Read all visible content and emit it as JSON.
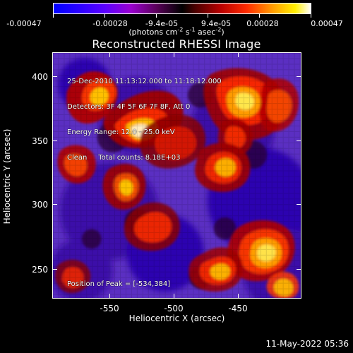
{
  "colorbar": {
    "tick_labels": [
      "-0.00047",
      "-0.00028",
      "-9.4e-05",
      "9.4e-05",
      "0.00028",
      "0.00047"
    ],
    "units_label": "(photons cm",
    "units_sup1": "-2",
    "units_mid1": " s",
    "units_sup2": "-1",
    "units_mid2": " asec",
    "units_sup3": "-2",
    "units_end": ")",
    "colors": {
      "min": "#0000ff",
      "mid": "#000000",
      "max": "#ffffff"
    }
  },
  "plot": {
    "title": "Reconstructed RHESSI Image",
    "info_lines": [
      "25-Dec-2010 11:13:12.000 to 11:18:12.000",
      "Detectors: 3F 4F 5F 6F 7F 8F, Att 0",
      "Energy Range: 12.0 - 25.0 keV",
      "Clean     Total counts: 8.18E+03"
    ],
    "peak_text": "Position of Peak = [-534,384]",
    "x_label": "Heliocentric X (arcsec)",
    "y_label": "Heliocentric Y (arcsec)",
    "x_ticks": [
      "-550",
      "-500",
      "-450"
    ],
    "y_ticks": [
      "400",
      "350",
      "300",
      "250"
    ]
  },
  "footer": {
    "timestamp": "11-May-2022 05:36"
  }
}
